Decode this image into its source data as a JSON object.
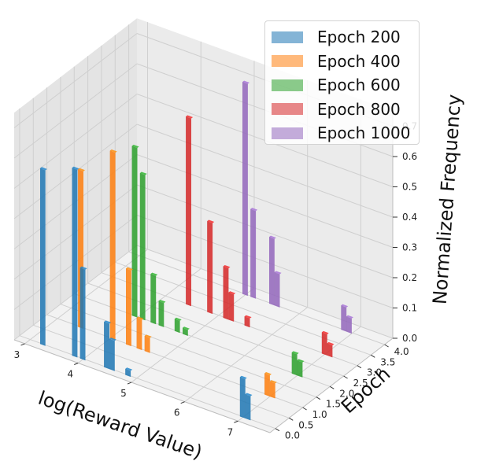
{
  "chart_data": {
    "type": "bar3d",
    "zlabel": "Normalized Frequency",
    "xlabel": "log(Reward Value)",
    "ylabel": "Epoch",
    "x_ticks": [
      "3",
      "4",
      "5",
      "6",
      "7"
    ],
    "y_ticks": [
      "0.0",
      "0.5",
      "1.0",
      "1.5",
      "2.0",
      "2.5",
      "3.0",
      "3.5",
      "4.0"
    ],
    "z_ticks": [
      "0.0",
      "0.1",
      "0.2",
      "0.3",
      "0.4",
      "0.5",
      "0.6",
      "0.7"
    ],
    "xlim": [
      2.8,
      7.6
    ],
    "ylim": [
      -0.2,
      4.3
    ],
    "zlim": [
      0,
      0.75
    ],
    "series": [
      {
        "name": "Epoch 200",
        "epoch_index": 0,
        "color": "#1f77b4",
        "bars": [
          {
            "x": 3.25,
            "y": 0.58
          },
          {
            "x": 3.85,
            "y": 0.62
          },
          {
            "x": 4.0,
            "y": 0.3
          },
          {
            "x": 4.45,
            "y": 0.15
          },
          {
            "x": 4.55,
            "y": 0.1
          },
          {
            "x": 4.85,
            "y": 0.02
          },
          {
            "x": 7.0,
            "y": 0.13
          },
          {
            "x": 7.1,
            "y": 0.08
          }
        ]
      },
      {
        "name": "Epoch 400",
        "epoch_index": 1,
        "color": "#ff7f0e",
        "bars": [
          {
            "x": 3.45,
            "y": 0.52
          },
          {
            "x": 4.05,
            "y": 0.62
          },
          {
            "x": 4.35,
            "y": 0.25
          },
          {
            "x": 4.55,
            "y": 0.1
          },
          {
            "x": 4.7,
            "y": 0.05
          },
          {
            "x": 6.95,
            "y": 0.07
          },
          {
            "x": 7.05,
            "y": 0.05
          }
        ]
      },
      {
        "name": "Epoch 600",
        "epoch_index": 2,
        "color": "#2ca02c",
        "bars": [
          {
            "x": 3.95,
            "y": 0.56
          },
          {
            "x": 4.1,
            "y": 0.48
          },
          {
            "x": 4.3,
            "y": 0.16
          },
          {
            "x": 4.45,
            "y": 0.08
          },
          {
            "x": 4.75,
            "y": 0.04
          },
          {
            "x": 4.9,
            "y": 0.02
          },
          {
            "x": 6.95,
            "y": 0.07
          },
          {
            "x": 7.05,
            "y": 0.05
          }
        ]
      },
      {
        "name": "Epoch 800",
        "epoch_index": 3,
        "color": "#d62728",
        "bars": [
          {
            "x": 4.45,
            "y": 0.62
          },
          {
            "x": 4.85,
            "y": 0.3
          },
          {
            "x": 5.15,
            "y": 0.17
          },
          {
            "x": 5.25,
            "y": 0.09
          },
          {
            "x": 5.55,
            "y": 0.03
          },
          {
            "x": 7.0,
            "y": 0.07
          },
          {
            "x": 7.1,
            "y": 0.04
          }
        ]
      },
      {
        "name": "Epoch 1000",
        "epoch_index": 4,
        "color": "#9467bd",
        "bars": [
          {
            "x": 5.0,
            "y": 0.7
          },
          {
            "x": 5.15,
            "y": 0.29
          },
          {
            "x": 5.5,
            "y": 0.22
          },
          {
            "x": 5.6,
            "y": 0.11
          },
          {
            "x": 6.85,
            "y": 0.08
          },
          {
            "x": 6.95,
            "y": 0.05
          }
        ]
      }
    ],
    "legend_position": "top-right"
  }
}
